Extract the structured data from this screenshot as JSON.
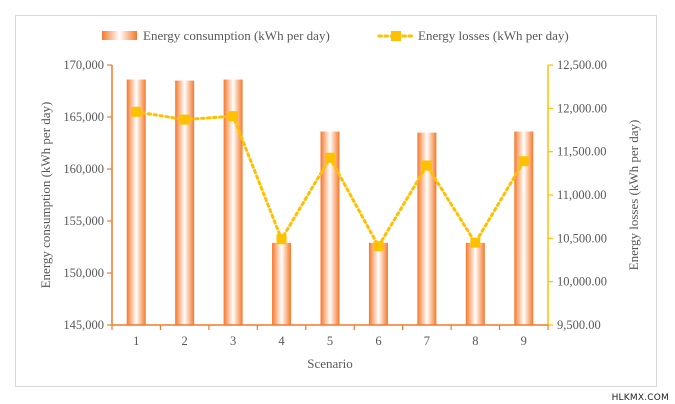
{
  "chart_data": {
    "type": "bar",
    "categories": [
      "1",
      "2",
      "3",
      "4",
      "5",
      "6",
      "7",
      "8",
      "9"
    ],
    "xlabel": "Scenario",
    "ylabel": "Energy consumption (kWh per day)",
    "y2label": "Energy losses (kWh per day)",
    "ylim": [
      145000,
      170000
    ],
    "y2lim": [
      9500,
      12500
    ],
    "yticks": [
      "145,000",
      "150,000",
      "155,000",
      "160,000",
      "165,000",
      "170,000"
    ],
    "y2ticks": [
      "9,500.00",
      "10,000.00",
      "10,500.00",
      "11,000.00",
      "11,500.00",
      "12,000.00",
      "12,500.00"
    ],
    "grid": false,
    "legend_position": "top",
    "series": [
      {
        "name": "Energy consumption (kWh per day)",
        "type": "bar",
        "axis": "left",
        "color": "#f4782a",
        "values": [
          168600,
          168500,
          168600,
          152900,
          163600,
          152900,
          163500,
          152900,
          163600
        ]
      },
      {
        "name": "Energy losses (kWh per day)",
        "type": "line",
        "axis": "right",
        "color": "#ffc000",
        "marker": "square",
        "values": [
          11960,
          11870,
          11910,
          10490,
          11430,
          10410,
          11340,
          10450,
          11390
        ]
      }
    ]
  },
  "watermark": "HLKMX.COM"
}
